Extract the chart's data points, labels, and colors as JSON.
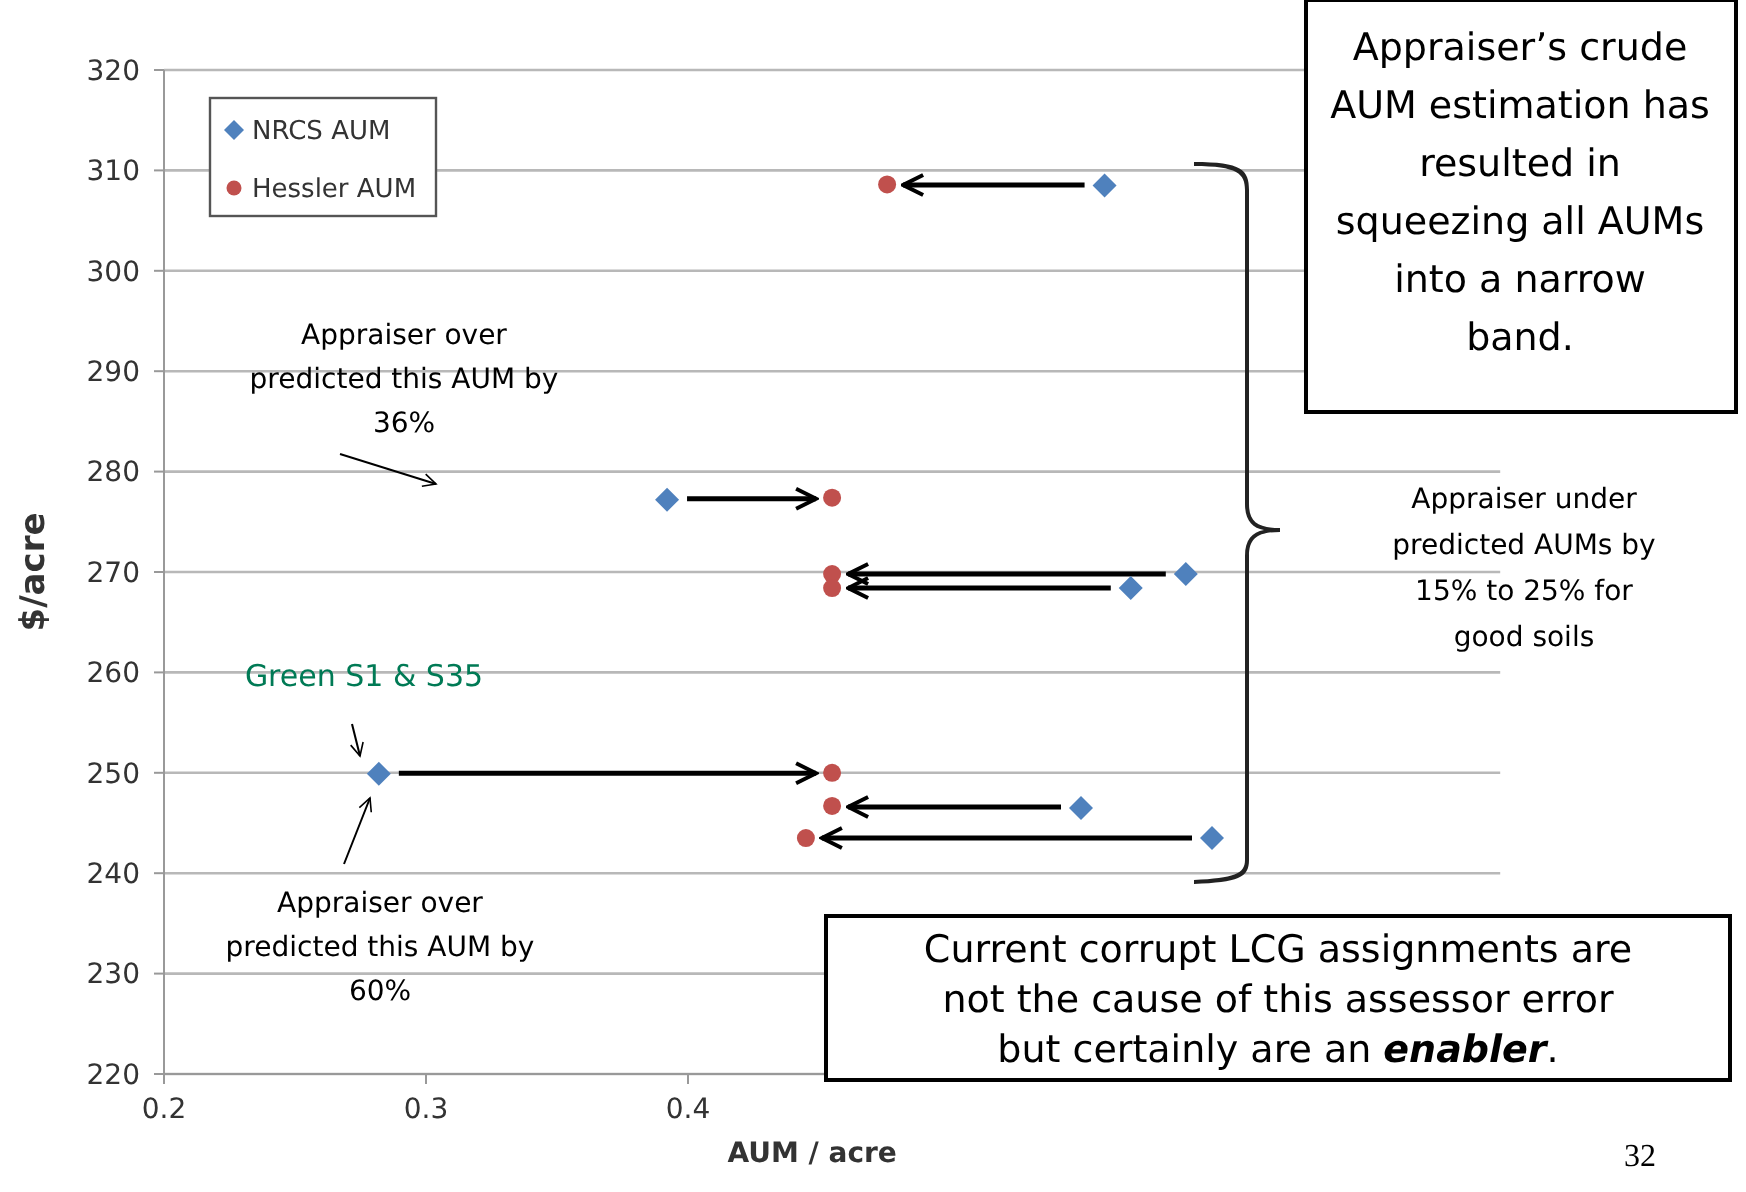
{
  "chart_data": {
    "type": "scatter",
    "xlabel": "AUM / acre",
    "ylabel": "$/acre",
    "xlim": [
      0.2,
      0.71
    ],
    "xticks": [
      0.2,
      0.3,
      0.4
    ],
    "ylim": [
      220,
      320
    ],
    "yticks": [
      220,
      230,
      240,
      250,
      260,
      270,
      280,
      290,
      300,
      310,
      320
    ],
    "grid": "y",
    "legend": "top left",
    "series": [
      {
        "name": "NRCS AUM",
        "color": "#4f81bd",
        "marker": "diamond",
        "x": [
          0.559,
          0.392,
          0.59,
          0.569,
          0.282,
          0.55,
          0.6
        ],
        "values": [
          308.5,
          277.2,
          269.8,
          268.4,
          249.9,
          246.5,
          243.5
        ]
      },
      {
        "name": "Hessler AUM",
        "color": "#c0504d",
        "marker": "circle",
        "x": [
          0.476,
          0.455,
          0.455,
          0.455,
          0.455,
          0.455,
          0.445
        ],
        "values": [
          308.6,
          277.4,
          269.8,
          268.4,
          250,
          246.7,
          243.5
        ]
      }
    ],
    "annotations": [
      "Appraiser’s crude AUM estimation has resulted in squeezing all AUMs into a narrow band.",
      "Appraiser over predicted this AUM by 36%",
      "Green S1 & S35",
      "Appraiser over predicted this AUM by 60%",
      "Appraiser under predicted AUMs by 15% to 25% for good soils",
      "Current corrupt LCG assignments are not the cause of this assessor error but certainly are an enabler.",
      "32"
    ]
  }
}
